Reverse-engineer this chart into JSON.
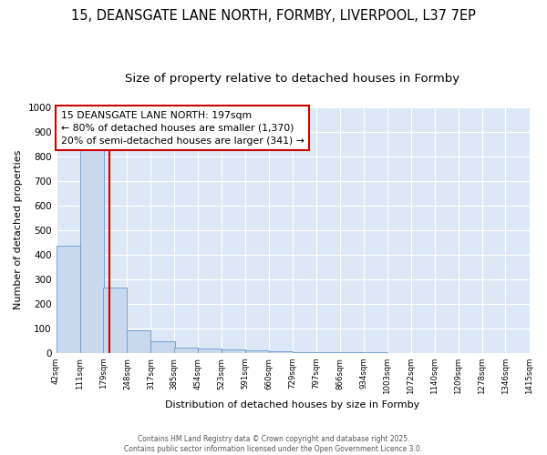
{
  "title_line1": "15, DEANSGATE LANE NORTH, FORMBY, LIVERPOOL, L37 7EP",
  "title_line2": "Size of property relative to detached houses in Formby",
  "xlabel": "Distribution of detached houses by size in Formby",
  "ylabel": "Number of detached properties",
  "bin_edges": [
    42,
    111,
    179,
    248,
    317,
    385,
    454,
    523,
    591,
    660,
    729,
    797,
    866,
    934,
    1003,
    1072,
    1140,
    1209,
    1278,
    1346,
    1415
  ],
  "bin_labels": [
    "42sqm",
    "111sqm",
    "179sqm",
    "248sqm",
    "317sqm",
    "385sqm",
    "454sqm",
    "523sqm",
    "591sqm",
    "660sqm",
    "729sqm",
    "797sqm",
    "866sqm",
    "934sqm",
    "1003sqm",
    "1072sqm",
    "1140sqm",
    "1209sqm",
    "1278sqm",
    "1346sqm",
    "1415sqm"
  ],
  "bar_heights": [
    435,
    832,
    265,
    93,
    46,
    23,
    16,
    14,
    9,
    5,
    4,
    3,
    2,
    2,
    1,
    1,
    1,
    1,
    1,
    1
  ],
  "bar_color": "#c8d9ee",
  "bar_edgecolor": "#6699cc",
  "property_size": 197,
  "vline_color": "#cc0000",
  "ylim": [
    0,
    1000
  ],
  "yticks": [
    0,
    100,
    200,
    300,
    400,
    500,
    600,
    700,
    800,
    900,
    1000
  ],
  "annotation_title": "15 DEANSGATE LANE NORTH: 197sqm",
  "annotation_line1": "← 80% of detached houses are smaller (1,370)",
  "annotation_line2": "20% of semi-detached houses are larger (341) →",
  "annotation_box_color": "#ffffff",
  "annotation_box_edgecolor": "#cc0000",
  "plot_bg_color": "#dce8f5",
  "fig_bg_color": "#ffffff",
  "grid_color": "#ffffff",
  "footer_text": "Contains HM Land Registry data © Crown copyright and database right 2025.\nContains public sector information licensed under the Open Government Licence 3.0.",
  "title_fontsize": 10.5,
  "subtitle_fontsize": 9.5
}
